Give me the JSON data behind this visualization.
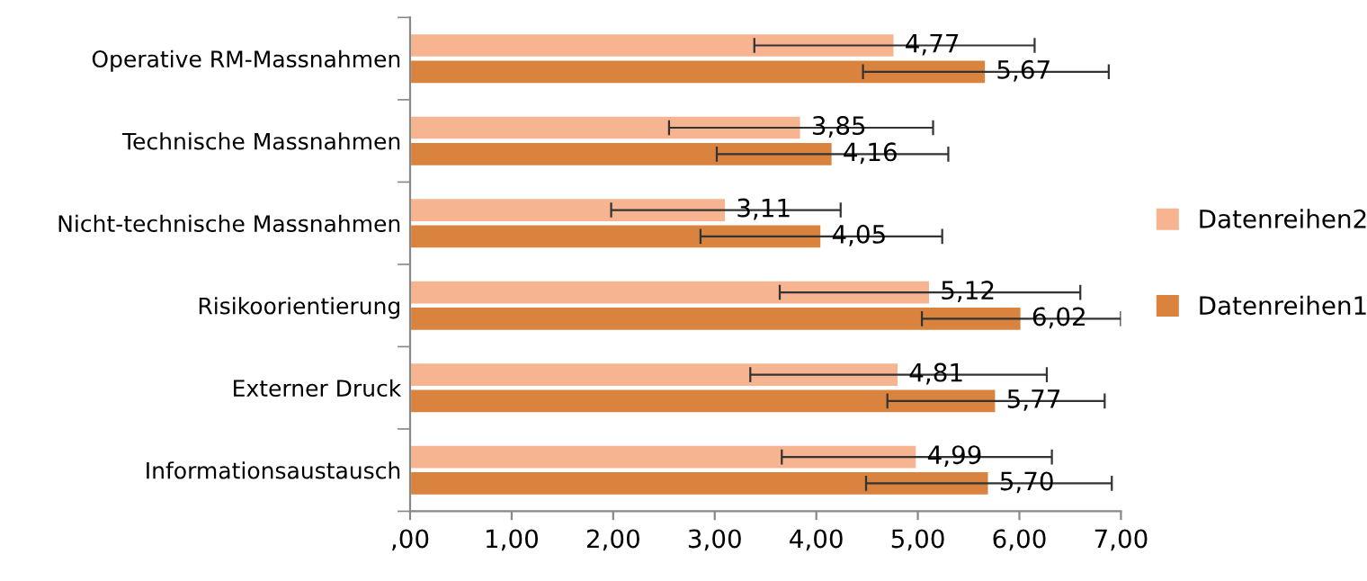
{
  "chart_data": {
    "type": "bar",
    "orientation": "horizontal",
    "categories": [
      "Operative RM-Massnahmen",
      "Technische Massnahmen",
      "Nicht-technische Massnahmen",
      "Risikoorientierung",
      "Externer Druck",
      "Informationsaustausch"
    ],
    "series": [
      {
        "name": "Datenreihen2",
        "color": "#f7b491",
        "values": [
          4.77,
          3.85,
          3.11,
          5.12,
          4.81,
          4.99
        ],
        "errors": [
          1.38,
          1.3,
          1.13,
          1.48,
          1.46,
          1.33
        ],
        "value_labels": [
          "4,77",
          "3,85",
          "3,11",
          "5,12",
          "4,81",
          "4,99"
        ]
      },
      {
        "name": "Datenreihen1",
        "color": "#d9833f",
        "values": [
          5.67,
          4.16,
          4.05,
          6.02,
          5.77,
          5.7
        ],
        "errors": [
          1.21,
          1.14,
          1.19,
          0.98,
          1.07,
          1.21
        ],
        "value_labels": [
          "5,67",
          "4,16",
          "4,05",
          "6,02",
          "5,77",
          "5,70"
        ]
      }
    ],
    "xlim": [
      0,
      7
    ],
    "xticks": [
      {
        "value": 0,
        "label": ",00"
      },
      {
        "value": 1,
        "label": "1,00"
      },
      {
        "value": 2,
        "label": "2,00"
      },
      {
        "value": 3,
        "label": "3,00"
      },
      {
        "value": 4,
        "label": "4,00"
      },
      {
        "value": 5,
        "label": "5,00"
      },
      {
        "value": 6,
        "label": "6,00"
      },
      {
        "value": 7,
        "label": "7,00"
      }
    ],
    "grid": false,
    "legend": "right"
  }
}
